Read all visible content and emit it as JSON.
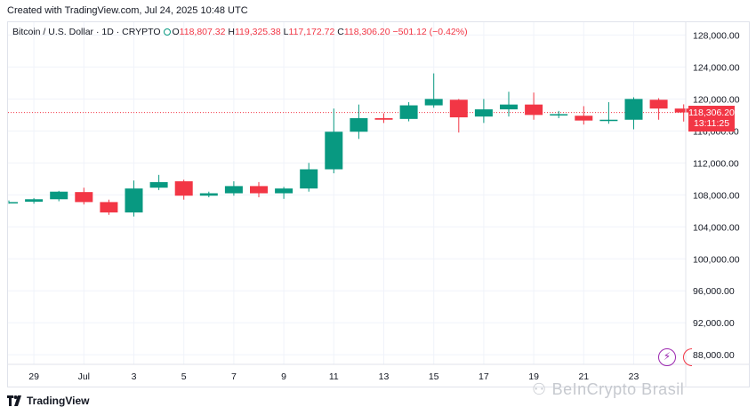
{
  "header": {
    "created_text": "Created with TradingView.com, Jul 24, 2025 10:48 UTC"
  },
  "legend": {
    "symbol": "Bitcoin / U.S. Dollar · 1D · CRYPTO",
    "open_label": "O",
    "open": "118,807.32",
    "high_label": "H",
    "high": "119,325.38",
    "low_label": "L",
    "low": "117,172.72",
    "close_label": "C",
    "close": "118,306.20",
    "change": "−501.12 (−0.42%)"
  },
  "price_tag": {
    "price": "118,306.20",
    "countdown": "13:11:25"
  },
  "footer": {
    "brand": "TradingView"
  },
  "watermark": {
    "text": "BeInCrypto Brasil"
  },
  "colors": {
    "up": "#089981",
    "down": "#f23645",
    "grid": "#f0f3fa",
    "axis_text": "#131722",
    "watermark": "#c6c9cf"
  },
  "chart_data": {
    "type": "candlestick",
    "y_ticks": [
      88000,
      92000,
      96000,
      100000,
      104000,
      108000,
      112000,
      116000,
      120000,
      124000,
      128000
    ],
    "y_tick_labels": [
      "88,000.00",
      "92,000.00",
      "96,000.00",
      "100,000.00",
      "104,000.00",
      "108,000.00",
      "112,000.00",
      "116,000.00",
      "120,000.00",
      "124,000.00",
      "128,000.00"
    ],
    "ylim": [
      86800,
      129600
    ],
    "x_tick_labels": [
      {
        "label": "29",
        "index": 1
      },
      {
        "label": "Jul",
        "index": 3
      },
      {
        "label": "3",
        "index": 5
      },
      {
        "label": "5",
        "index": 7
      },
      {
        "label": "7",
        "index": 9
      },
      {
        "label": "9",
        "index": 11
      },
      {
        "label": "11",
        "index": 13
      },
      {
        "label": "13",
        "index": 15
      },
      {
        "label": "15",
        "index": 17
      },
      {
        "label": "17",
        "index": 19
      },
      {
        "label": "19",
        "index": 21
      },
      {
        "label": "21",
        "index": 23
      },
      {
        "label": "23",
        "index": 25
      }
    ],
    "last_price": 118306.2,
    "candles": [
      {
        "o": 107000,
        "h": 107300,
        "l": 106900,
        "c": 107100
      },
      {
        "o": 107150,
        "h": 107600,
        "l": 106900,
        "c": 107450
      },
      {
        "o": 107450,
        "h": 108500,
        "l": 107200,
        "c": 108400
      },
      {
        "o": 108350,
        "h": 108900,
        "l": 106800,
        "c": 107100
      },
      {
        "o": 107100,
        "h": 107400,
        "l": 105500,
        "c": 105800
      },
      {
        "o": 105800,
        "h": 109800,
        "l": 105300,
        "c": 108800
      },
      {
        "o": 108900,
        "h": 110500,
        "l": 108600,
        "c": 109600
      },
      {
        "o": 109700,
        "h": 109900,
        "l": 107400,
        "c": 107900
      },
      {
        "o": 107900,
        "h": 108400,
        "l": 107700,
        "c": 108200
      },
      {
        "o": 108200,
        "h": 109700,
        "l": 107900,
        "c": 109100
      },
      {
        "o": 109100,
        "h": 109600,
        "l": 107700,
        "c": 108200
      },
      {
        "o": 108200,
        "h": 109000,
        "l": 107500,
        "c": 108800
      },
      {
        "o": 108800,
        "h": 112000,
        "l": 108400,
        "c": 111200
      },
      {
        "o": 111200,
        "h": 118800,
        "l": 110700,
        "c": 115900
      },
      {
        "o": 115900,
        "h": 119300,
        "l": 115000,
        "c": 117600
      },
      {
        "o": 117600,
        "h": 118200,
        "l": 117000,
        "c": 117400
      },
      {
        "o": 117500,
        "h": 119600,
        "l": 117200,
        "c": 119200
      },
      {
        "o": 119200,
        "h": 123200,
        "l": 118900,
        "c": 120000
      },
      {
        "o": 119900,
        "h": 120000,
        "l": 115800,
        "c": 117700
      },
      {
        "o": 117800,
        "h": 120000,
        "l": 117000,
        "c": 118700
      },
      {
        "o": 118700,
        "h": 120900,
        "l": 117800,
        "c": 119300
      },
      {
        "o": 119300,
        "h": 120800,
        "l": 117400,
        "c": 118000
      },
      {
        "o": 118000,
        "h": 118500,
        "l": 117600,
        "c": 118100
      },
      {
        "o": 117900,
        "h": 119100,
        "l": 116800,
        "c": 117300
      },
      {
        "o": 117300,
        "h": 119600,
        "l": 116900,
        "c": 117400
      },
      {
        "o": 117400,
        "h": 120200,
        "l": 116200,
        "c": 120000
      },
      {
        "o": 119900,
        "h": 120100,
        "l": 117400,
        "c": 118800
      },
      {
        "o": 118800,
        "h": 119325.38,
        "l": 117172.72,
        "c": 118306.2
      }
    ]
  }
}
